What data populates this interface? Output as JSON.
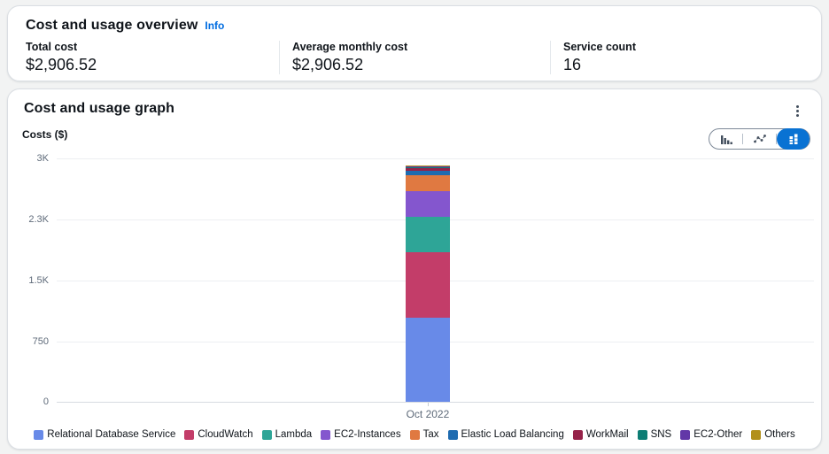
{
  "overview_card": {
    "title": "Cost and usage overview",
    "info_link": "Info",
    "info_link_color": "#006ce0",
    "stats": [
      {
        "label": "Total cost",
        "value": "$2,906.52"
      },
      {
        "label": "Average monthly cost",
        "value": "$2,906.52"
      },
      {
        "label": "Service count",
        "value": "16"
      }
    ]
  },
  "graph_card": {
    "title": "Cost and usage graph",
    "costs_axis_label": "Costs ($)",
    "actions_menu_icon": "kebab-menu-icon",
    "chart_type_toggle": {
      "selected_color": "#0972d3",
      "options": [
        {
          "icon": "bar-chart-icon",
          "selected": false
        },
        {
          "icon": "line-chart-icon",
          "selected": false
        },
        {
          "icon": "stacked-bar-chart-icon",
          "selected": true
        }
      ]
    }
  },
  "chart_data": {
    "type": "bar",
    "stacked": true,
    "title": "Cost and usage graph",
    "xlabel": "",
    "ylabel": "Costs ($)",
    "categories": [
      "Oct 2022"
    ],
    "ylim": [
      0,
      3000
    ],
    "y_ticks": [
      {
        "label": "0",
        "value": 0
      },
      {
        "label": "750",
        "value": 750
      },
      {
        "label": "1.5K",
        "value": 1500
      },
      {
        "label": "2.3K",
        "value": 2250
      },
      {
        "label": "3K",
        "value": 3000
      }
    ],
    "grid": true,
    "legend_position": "bottom",
    "total": 2906.52,
    "series": [
      {
        "name": "Relational Database Service",
        "color": "#688ae8",
        "values": [
          1030
        ]
      },
      {
        "name": "CloudWatch",
        "color": "#c33d69",
        "values": [
          810
        ]
      },
      {
        "name": "Lambda",
        "color": "#2ea597",
        "values": [
          435
        ]
      },
      {
        "name": "EC2-Instances",
        "color": "#8456ce",
        "values": [
          315
        ]
      },
      {
        "name": "Tax",
        "color": "#e07941",
        "values": [
          195
        ]
      },
      {
        "name": "Elastic Load Balancing",
        "color": "#1f6bb0",
        "values": [
          52
        ]
      },
      {
        "name": "WorkMail",
        "color": "#962249",
        "values": [
          28
        ]
      },
      {
        "name": "SNS",
        "color": "#0d7d74",
        "values": [
          20
        ]
      },
      {
        "name": "EC2-Other",
        "color": "#6237a7",
        "values": [
          10
        ]
      },
      {
        "name": "Others",
        "color": "#b2901b",
        "values": [
          11.52
        ]
      }
    ]
  }
}
